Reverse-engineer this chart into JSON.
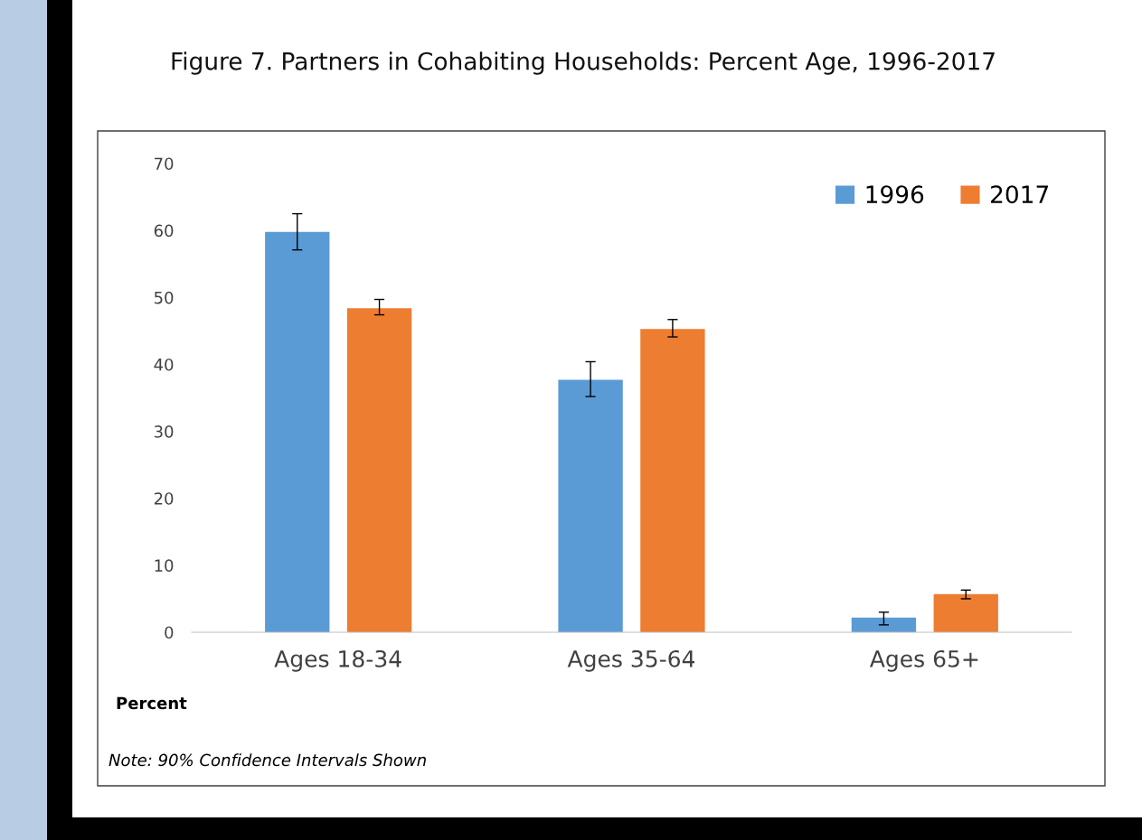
{
  "chart_data": {
    "type": "bar",
    "title": "Figure 7. Partners in Cohabiting Households: Percent Age, 1996-2017",
    "categories": [
      "Ages 18-34",
      "Ages 35-64",
      "Ages 65+"
    ],
    "series": [
      {
        "name": "1996",
        "color": "#5b9bd5",
        "values": [
          59.8,
          37.7,
          2.2
        ],
        "errors": [
          [
            57.1,
            62.5
          ],
          [
            35.2,
            40.4
          ],
          [
            1.1,
            3.0
          ]
        ]
      },
      {
        "name": "2017",
        "color": "#ed7d31",
        "values": [
          48.4,
          45.3,
          5.7
        ],
        "errors": [
          [
            47.4,
            49.7
          ],
          [
            44.1,
            46.7
          ],
          [
            5.0,
            6.3
          ]
        ]
      }
    ],
    "ylabel": "Percent",
    "ylim": [
      0,
      70
    ],
    "yticks": [
      0,
      10,
      20,
      30,
      40,
      50,
      60,
      70
    ],
    "grid": false,
    "legend": "top right",
    "annotations": [
      "Note: 90% Confidence Intervals Shown"
    ]
  }
}
